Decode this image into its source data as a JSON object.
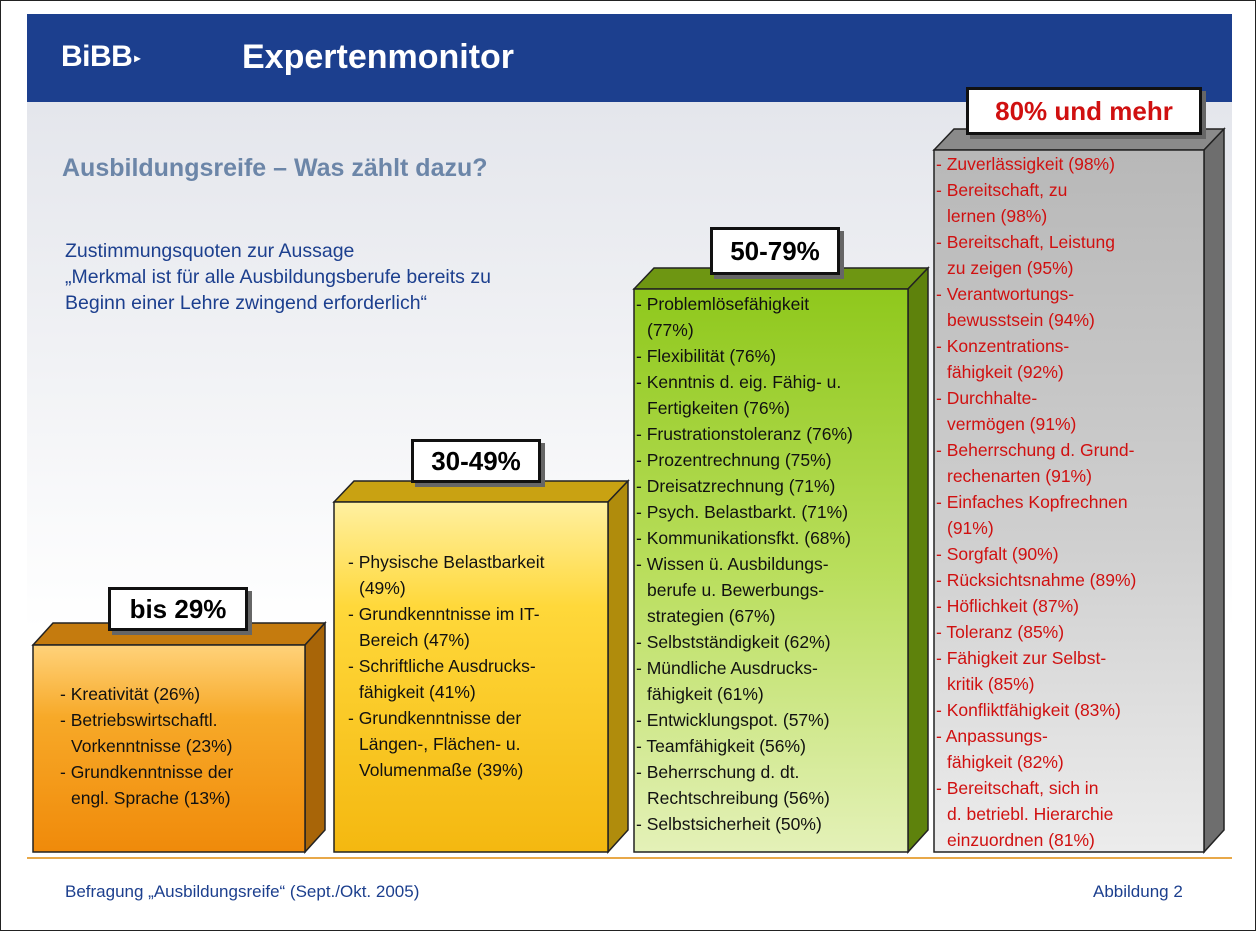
{
  "header": {
    "logo": "BiBB",
    "logo_mark": "▸",
    "title": "Expertenmonitor"
  },
  "subtitle": "Ausbildungsreife – Was zählt dazu?",
  "intro": [
    "Zustimmungsquoten zur Aussage",
    "„Merkmal ist für alle Ausbildungsberufe bereits zu",
    "Beginn einer Lehre zwingend erforderlich“"
  ],
  "colors": {
    "header_bg": "#1c3f8e",
    "subtitle": "#6c86a8",
    "bar1": "#f5a015",
    "bar2": "#fbd430",
    "bar3": "#9acd2c",
    "bar4": "#c3c3c3",
    "bar4_text": "#d01010"
  },
  "bars": [
    {
      "label": "bis 29%",
      "lines": [
        "- Kreativität (26%)",
        "- Betriebswirtschaftl.",
        "  Vorkenntnisse (23%)",
        "- Grundkenntnisse der",
        "  engl. Sprache (13%)"
      ]
    },
    {
      "label": "30-49%",
      "lines": [
        "- Physische Belastbarkeit",
        "  (49%)",
        "- Grundkenntnisse im IT-",
        "  Bereich (47%)",
        "- Schriftliche Ausdrucks-",
        "  fähigkeit (41%)",
        "- Grundkenntnisse der",
        "  Längen-, Flächen- u.",
        "  Volumenmaße (39%)"
      ]
    },
    {
      "label": "50-79%",
      "lines": [
        "- Problemlösefähigkeit",
        "  (77%)",
        "- Flexibilität (76%)",
        "- Kenntnis d. eig. Fähig- u.",
        "  Fertigkeiten (76%)",
        "- Frustrationstoleranz (76%)",
        "- Prozentrechnung (75%)",
        "- Dreisatzrechnung (71%)",
        "- Psych. Belastbarkt. (71%)",
        "- Kommunikationsfkt. (68%)",
        "- Wissen ü. Ausbildungs-",
        "  berufe u. Bewerbungs-",
        "  strategien (67%)",
        "- Selbstständigkeit (62%)",
        "- Mündliche Ausdrucks-",
        "  fähigkeit (61%)",
        "- Entwicklungspot. (57%)",
        "- Teamfähigkeit (56%)",
        "- Beherrschung d. dt.",
        "  Rechtschreibung (56%)",
        "- Selbstsicherheit (50%)"
      ]
    },
    {
      "label": "80% und mehr",
      "lines": [
        "- Zuverlässigkeit (98%)",
        "- Bereitschaft, zu",
        "  lernen (98%)",
        "- Bereitschaft, Leistung",
        "  zu zeigen (95%)",
        "- Verantwortungs-",
        "  bewusstsein (94%)",
        "- Konzentrations-",
        "  fähigkeit (92%)",
        "- Durchhalte-",
        "  vermögen (91%)",
        "- Beherrschung d. Grund-",
        "  rechenarten (91%)",
        "- Einfaches Kopfrechnen",
        "  (91%)",
        "- Sorgfalt (90%)",
        "- Rücksichtsnahme (89%)",
        "- Höflichkeit (87%)",
        "- Toleranz (85%)",
        "- Fähigkeit zur Selbst-",
        "  kritik (85%)",
        "- Konfliktfähigkeit (83%)",
        "- Anpassungs-",
        "  fähigkeit (82%)",
        "- Bereitschaft, sich in",
        "  d. betriebl. Hierarchie",
        "  einzuordnen (81%)"
      ]
    }
  ],
  "footer": {
    "source": "Befragung „Ausbildungsreife“ (Sept./Okt. 2005)",
    "figure": "Abbildung 2"
  }
}
